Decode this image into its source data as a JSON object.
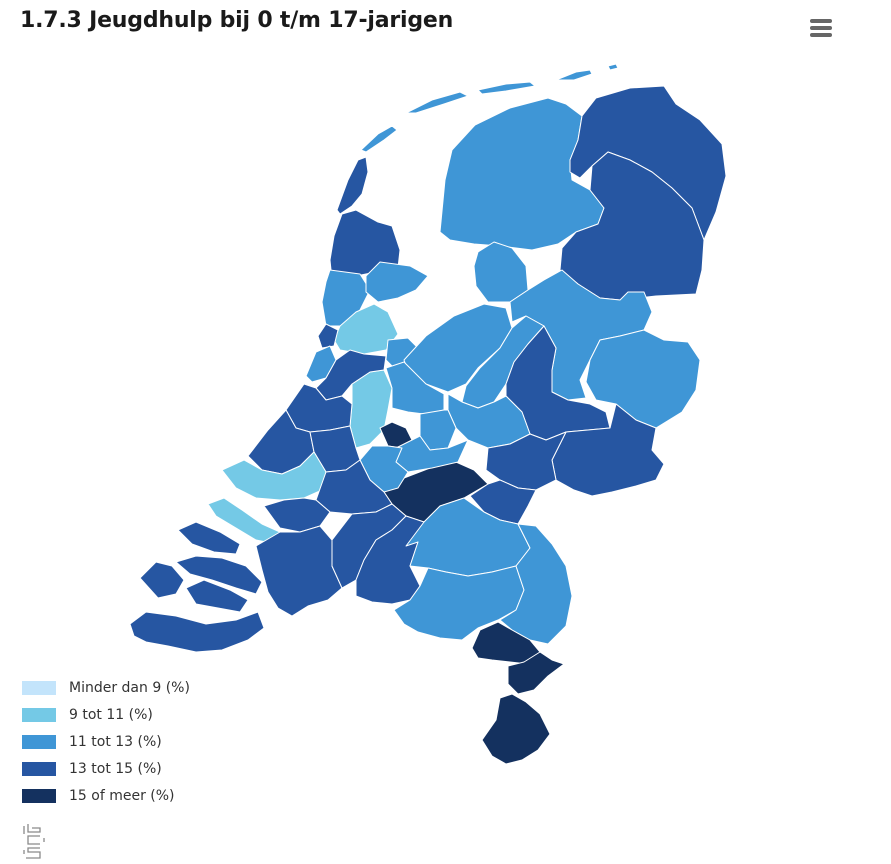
{
  "title": "1.7.3 Jeugdhulp bij 0 t/m 17-jarigen",
  "menu": {
    "icon": "hamburger-menu-icon"
  },
  "colors": {
    "c1": "#c3e4fb",
    "c2": "#74c9e6",
    "c3": "#3f96d6",
    "c4": "#2656a2",
    "c5": "#14315f",
    "water": "#ffffff"
  },
  "legend": [
    {
      "label": "Minder dan 9 (%)",
      "color": "#c3e4fb"
    },
    {
      "label": "9 tot 11 (%)",
      "color": "#74c9e6"
    },
    {
      "label": "11 tot 13 (%)",
      "color": "#3f96d6"
    },
    {
      "label": "13 tot 15 (%)",
      "color": "#2656a2"
    },
    {
      "label": "15 of meer (%)",
      "color": "#14315f"
    }
  ],
  "logo": {
    "icon": "cbs-logo-icon"
  }
}
